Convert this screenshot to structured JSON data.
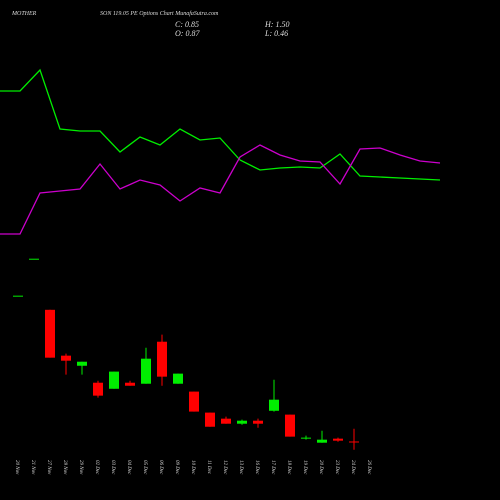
{
  "chart_data": [
    {
      "type": "candlestick",
      "title": "MOTHER",
      "subtitle": "SON 119.05 PE Options Chart MunafaSutra.com",
      "stats": [
        "C: 0.85",
        "H: 1.50",
        "O: 0.87",
        "L: 0.46"
      ],
      "categories": [
        "20 Nov",
        "21 Nov",
        "27 Nov",
        "28 Nov",
        "29 Nov",
        "02 Dec",
        "03 Dec",
        "04 Dec",
        "05 Dec",
        "06 Dec",
        "09 Dec",
        "10 Dec",
        "11 Dec",
        "12 Dec",
        "13 Dec",
        "16 Dec",
        "17 Dec",
        "18 Dec",
        "19 Dec",
        "20 Dec",
        "23 Dec",
        "24 Dec",
        "26 Dec"
      ],
      "open": [
        8.09,
        9.92,
        7.39,
        5.12,
        4.62,
        3.78,
        3.48,
        3.78,
        3.73,
        5.81,
        3.73,
        3.34,
        2.3,
        2.0,
        1.75,
        1.9,
        2.39,
        2.2,
        1.01,
        0.81,
        1.01,
        0.87,
        null
      ],
      "high": [
        8.09,
        9.92,
        7.39,
        5.22,
        4.82,
        3.88,
        4.33,
        3.88,
        5.51,
        6.16,
        4.23,
        3.34,
        2.3,
        2.1,
        1.95,
        2.0,
        3.93,
        2.2,
        1.16,
        1.4,
        1.06,
        1.5,
        null
      ],
      "low": [
        8.09,
        9.92,
        5.02,
        4.18,
        4.18,
        3.04,
        3.48,
        3.63,
        3.73,
        3.63,
        3.73,
        2.35,
        1.6,
        1.75,
        1.7,
        1.55,
        2.35,
        1.11,
        0.96,
        0.81,
        0.86,
        0.46,
        null
      ],
      "close": [
        8.09,
        9.92,
        5.02,
        4.87,
        4.82,
        3.14,
        4.33,
        3.63,
        4.97,
        4.08,
        4.23,
        2.35,
        1.6,
        1.75,
        1.9,
        1.75,
        2.94,
        1.11,
        1.06,
        0.96,
        0.91,
        0.85,
        null
      ],
      "up_color": "#00ee00",
      "down_color": "#ff0000",
      "ylim": [
        0.3,
        10.5
      ]
    },
    {
      "type": "line",
      "categories": [
        null,
        null,
        null,
        null,
        null,
        null,
        null,
        null,
        null,
        null,
        null,
        null,
        null,
        null,
        null,
        null,
        null,
        null,
        null,
        null,
        null,
        null,
        null
      ],
      "series": [
        {
          "color": "#00ee00",
          "values": [
            159,
            159,
            180,
            121,
            119,
            119,
            98,
            113,
            105,
            121,
            110,
            112,
            90,
            80,
            82,
            83,
            82,
            96,
            74,
            73,
            72,
            71,
            70
          ]
        },
        {
          "color": "#cc00cc",
          "values": [
            16,
            16,
            57,
            59,
            61,
            86,
            61,
            70,
            65,
            49,
            62,
            57,
            93,
            105,
            95,
            89,
            88,
            66,
            101,
            102,
            95,
            89,
            87
          ]
        }
      ],
      "ylim": [
        0,
        250
      ]
    }
  ]
}
